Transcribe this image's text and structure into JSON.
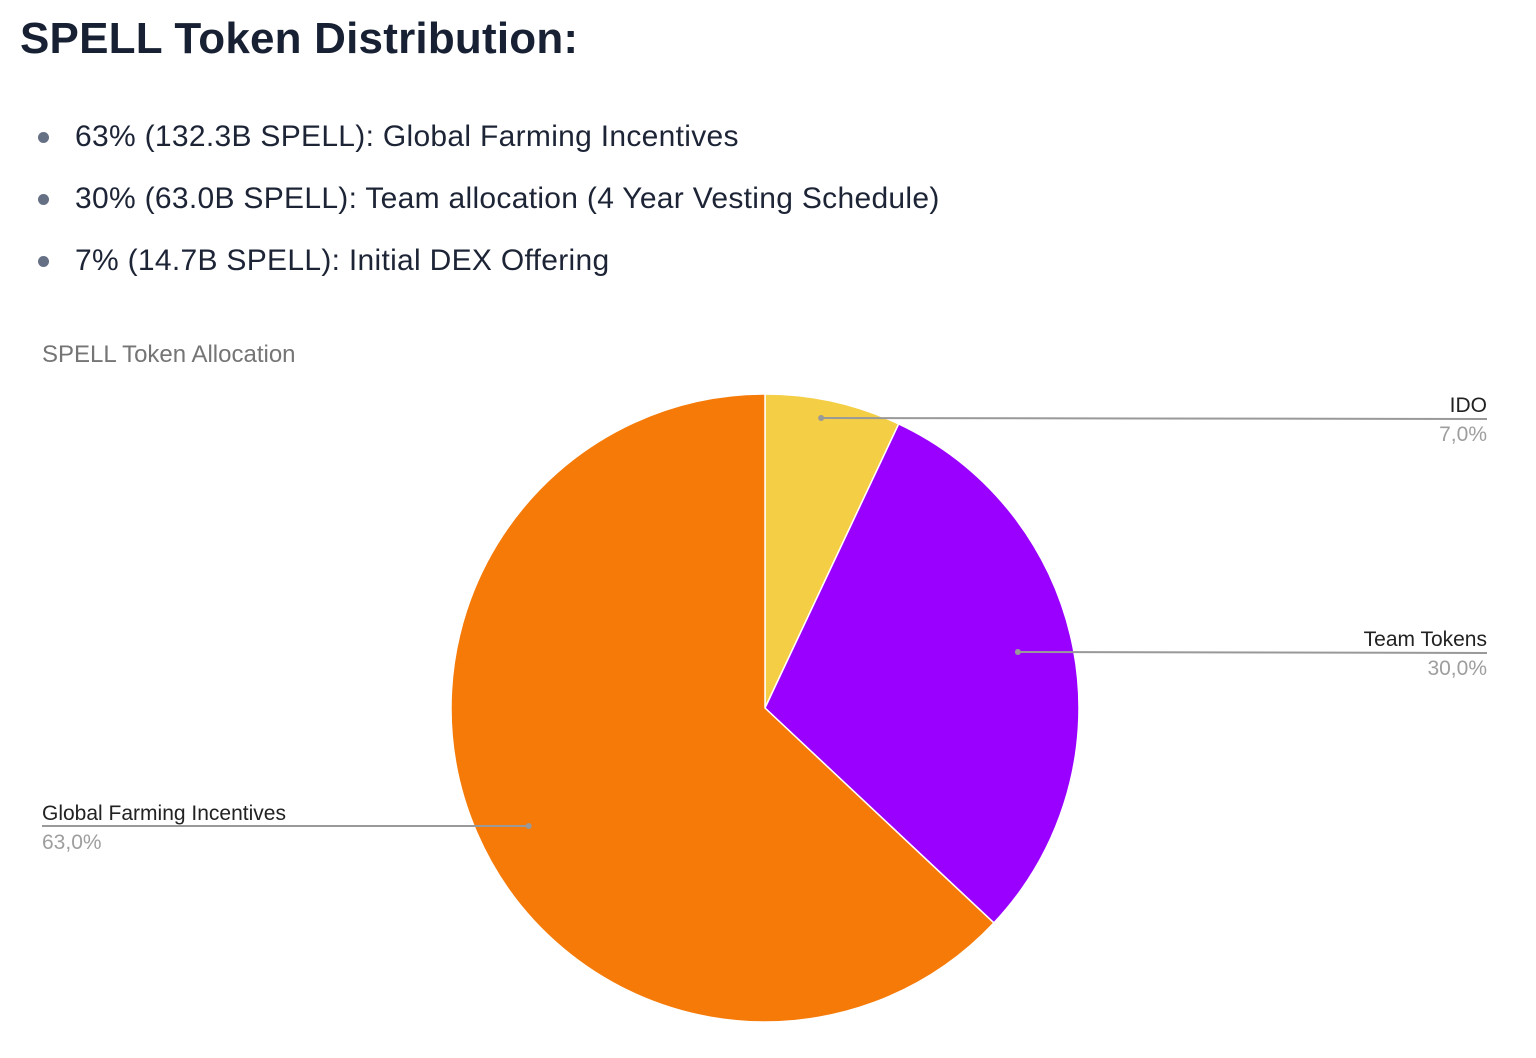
{
  "heading": "SPELL Token Distribution:",
  "bullets": [
    "63% (132.3B SPELL): Global Farming Incentives",
    "30% (63.0B SPELL): Team allocation (4 Year Vesting Schedule)",
    "7% (14.7B SPELL): Initial DEX Offering"
  ],
  "chart_data": {
    "type": "pie",
    "title": "SPELL Token Allocation",
    "start": "top, clockwise",
    "slices": [
      {
        "label": "IDO",
        "value": 7.0,
        "display": "7,0%",
        "color": "#F4CE44"
      },
      {
        "label": "Team Tokens",
        "value": 30.0,
        "display": "30,0%",
        "color": "#9900FF"
      },
      {
        "label": "Global Farming Incentives",
        "value": 63.0,
        "display": "63,0%",
        "color": "#F57A07"
      }
    ]
  }
}
